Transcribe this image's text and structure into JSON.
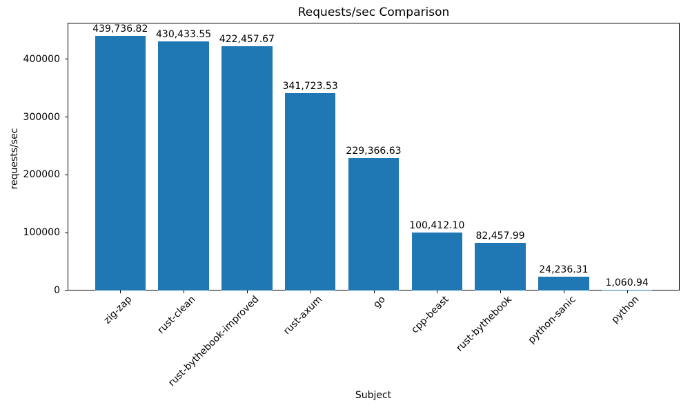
{
  "figure": {
    "background": "#ffffff",
    "text_color": "#000000"
  },
  "chart_data": {
    "type": "bar",
    "title": "Requests/sec Comparison",
    "xlabel": "Subject",
    "ylabel": "requests/sec",
    "categories": [
      "zig-zap",
      "rust-clean",
      "rust-bythebook-improved",
      "rust-axum",
      "go",
      "cpp-beast",
      "rust-bythebook",
      "python-sanic",
      "python"
    ],
    "values": [
      439736.82,
      430433.55,
      422457.67,
      341723.53,
      229366.63,
      100412.1,
      82457.99,
      24236.31,
      1060.94
    ],
    "value_labels": [
      "439,736.82",
      "430,433.55",
      "422,457.67",
      "341,723.53",
      "229,366.63",
      "100,412.10",
      "82,457.99",
      "24,236.31",
      "1,060.94"
    ],
    "yticks": [
      0,
      100000,
      200000,
      300000,
      400000
    ],
    "ytick_labels": [
      "0",
      "100000",
      "200000",
      "300000",
      "400000"
    ],
    "ylim": [
      0,
      463000
    ],
    "bar_color": "#1f77b4",
    "grid": false,
    "legend": null,
    "xtick_rotation_deg": 45
  }
}
